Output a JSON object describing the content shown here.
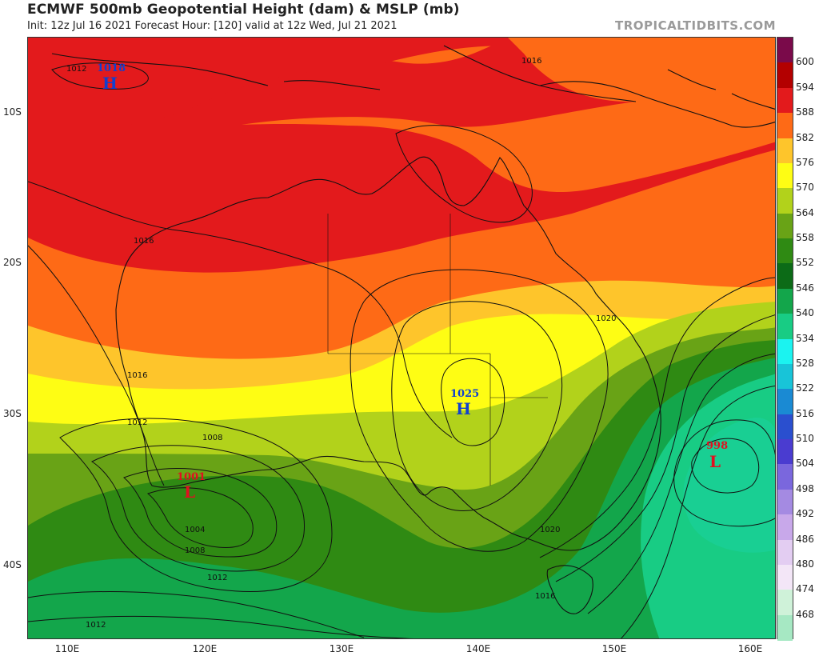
{
  "header": {
    "title": "ECMWF 500mb Geopotential Height (dam) & MSLP (mb)",
    "subtitle": "Init: 12z Jul 16 2021   Forecast Hour: [120]   valid at 12z Wed, Jul 21 2021",
    "credit": "TROPICALTIDBITS.COM"
  },
  "axes": {
    "lat_labels": [
      "10S",
      "20S",
      "30S",
      "40S"
    ],
    "lon_labels": [
      "110E",
      "120E",
      "130E",
      "140E",
      "150E",
      "160E"
    ]
  },
  "colorbar": {
    "labels": [
      "600",
      "594",
      "588",
      "582",
      "576",
      "570",
      "564",
      "558",
      "552",
      "546",
      "540",
      "534",
      "528",
      "522",
      "516",
      "510",
      "504",
      "498",
      "492",
      "486",
      "480",
      "474",
      "468"
    ],
    "colors": [
      "#7a0a4a",
      "#b30000",
      "#e31a1c",
      "#fe6a16",
      "#fec52b",
      "#fefd14",
      "#b2d21b",
      "#69a316",
      "#2f8a13",
      "#0c6b17",
      "#13a64b",
      "#18cc84",
      "#1bf3f0",
      "#18c4d8",
      "#1a8ad3",
      "#2a4fcf",
      "#4a3cd0",
      "#7a67dd",
      "#a48ae2",
      "#c8a8ea",
      "#e3cdf2",
      "#f3e6f7",
      "#cff2d9",
      "#a6e8c3"
    ]
  },
  "pressure_centers": [
    {
      "type": "H",
      "value": "1018",
      "color": "#1040d0"
    },
    {
      "type": "H",
      "value": "1025",
      "color": "#1040d0"
    },
    {
      "type": "L",
      "value": "1001",
      "color": "#e01020"
    },
    {
      "type": "L",
      "value": "998",
      "color": "#e01020"
    }
  ],
  "isobar_labels": [
    "1012",
    "1016",
    "1016",
    "1016",
    "1012",
    "1008",
    "1004",
    "1008",
    "1012",
    "1012",
    "1020",
    "1020",
    "1016"
  ]
}
